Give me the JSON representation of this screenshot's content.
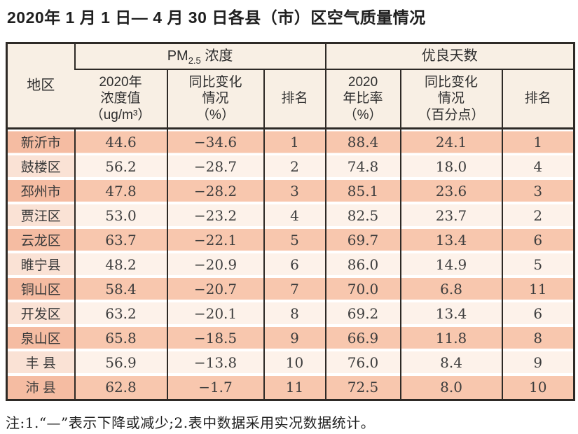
{
  "title": "2020年 1 月 1 日— 4 月 30 日各县（市）区空气质量情况",
  "table": {
    "region_header": "地区",
    "group1": {
      "prefix": "PM",
      "sub": "2.5",
      "suffix": " 浓度"
    },
    "group2": "优良天数",
    "sub_headers": {
      "pm_value": "2020年\n浓度值\n（ug/m³）",
      "pm_change": "同比变化\n情况\n（%）",
      "pm_rank": "排名",
      "good_ratio": "2020\n年比率\n（%）",
      "good_change": "同比变化\n情况\n（百分点）",
      "good_rank": "排名"
    },
    "rows": [
      {
        "region": "新沂市",
        "pm": "44.6",
        "pmchg": "−34.6",
        "pmrank": "1",
        "ratio": "88.4",
        "ratiochg": "24.1",
        "goodrank": "1"
      },
      {
        "region": "鼓楼区",
        "pm": "56.2",
        "pmchg": "−28.7",
        "pmrank": "2",
        "ratio": "74.8",
        "ratiochg": "18.0",
        "goodrank": "4"
      },
      {
        "region": "邳州市",
        "pm": "47.8",
        "pmchg": "−28.2",
        "pmrank": "3",
        "ratio": "85.1",
        "ratiochg": "23.6",
        "goodrank": "3"
      },
      {
        "region": "贾汪区",
        "pm": "53.0",
        "pmchg": "−23.2",
        "pmrank": "4",
        "ratio": "82.5",
        "ratiochg": "23.7",
        "goodrank": "2"
      },
      {
        "region": "云龙区",
        "pm": "63.7",
        "pmchg": "−22.1",
        "pmrank": "5",
        "ratio": "69.7",
        "ratiochg": "13.4",
        "goodrank": "6"
      },
      {
        "region": "睢宁县",
        "pm": "48.2",
        "pmchg": "−20.9",
        "pmrank": "6",
        "ratio": "86.0",
        "ratiochg": "14.9",
        "goodrank": "5"
      },
      {
        "region": "铜山区",
        "pm": "58.4",
        "pmchg": "−20.7",
        "pmrank": "7",
        "ratio": "70.0",
        "ratiochg": "6.8",
        "goodrank": "11"
      },
      {
        "region": "开发区",
        "pm": "63.2",
        "pmchg": "−20.1",
        "pmrank": "8",
        "ratio": "69.2",
        "ratiochg": "13.4",
        "goodrank": "6"
      },
      {
        "region": "泉山区",
        "pm": "65.8",
        "pmchg": "−18.5",
        "pmrank": "9",
        "ratio": "66.9",
        "ratiochg": "11.8",
        "goodrank": "8"
      },
      {
        "region": "丰 县",
        "pm": "56.9",
        "pmchg": "−13.8",
        "pmrank": "10",
        "ratio": "76.0",
        "ratiochg": "8.4",
        "goodrank": "9"
      },
      {
        "region": "沛 县",
        "pm": "62.8",
        "pmchg": "−1.7",
        "pmrank": "11",
        "ratio": "72.5",
        "ratiochg": "8.0",
        "goodrank": "10"
      }
    ]
  },
  "footnote": "注:1.“—”表示下降或减少;2.表中数据采用实况数据统计。",
  "colors": {
    "row_odd": "#f8c7ae",
    "row_even": "#fdf2ea",
    "region_odd": "#f5bca2",
    "region_even": "#fae2d5",
    "header_bg": "#f8efe4",
    "border": "#2e2a26"
  }
}
